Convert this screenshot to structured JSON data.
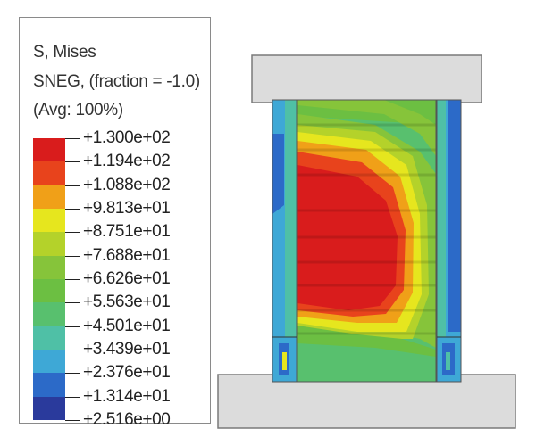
{
  "legend": {
    "title_line1": "S, Mises",
    "title_line2": "SNEG, (fraction = -1.0)",
    "title_line3": "(Avg: 100%)",
    "levels": [
      "+1.300e+02",
      "+1.194e+02",
      "+1.088e+02",
      "+9.813e+01",
      "+8.751e+01",
      "+7.688e+01",
      "+6.626e+01",
      "+5.563e+01",
      "+4.501e+01",
      "+3.439e+01",
      "+2.376e+01",
      "+1.314e+01",
      "+2.516e+00"
    ],
    "colors": [
      "#d91c1c",
      "#e8431c",
      "#f0a018",
      "#e6e61e",
      "#b4d22a",
      "#86c43a",
      "#6cbf42",
      "#58c06e",
      "#4fc0a6",
      "#3ea8d6",
      "#2c6ac8",
      "#2a3a9c"
    ]
  },
  "model": {
    "plate_color": "#dcdcdc",
    "plate_edge": "#7a7a7a"
  }
}
